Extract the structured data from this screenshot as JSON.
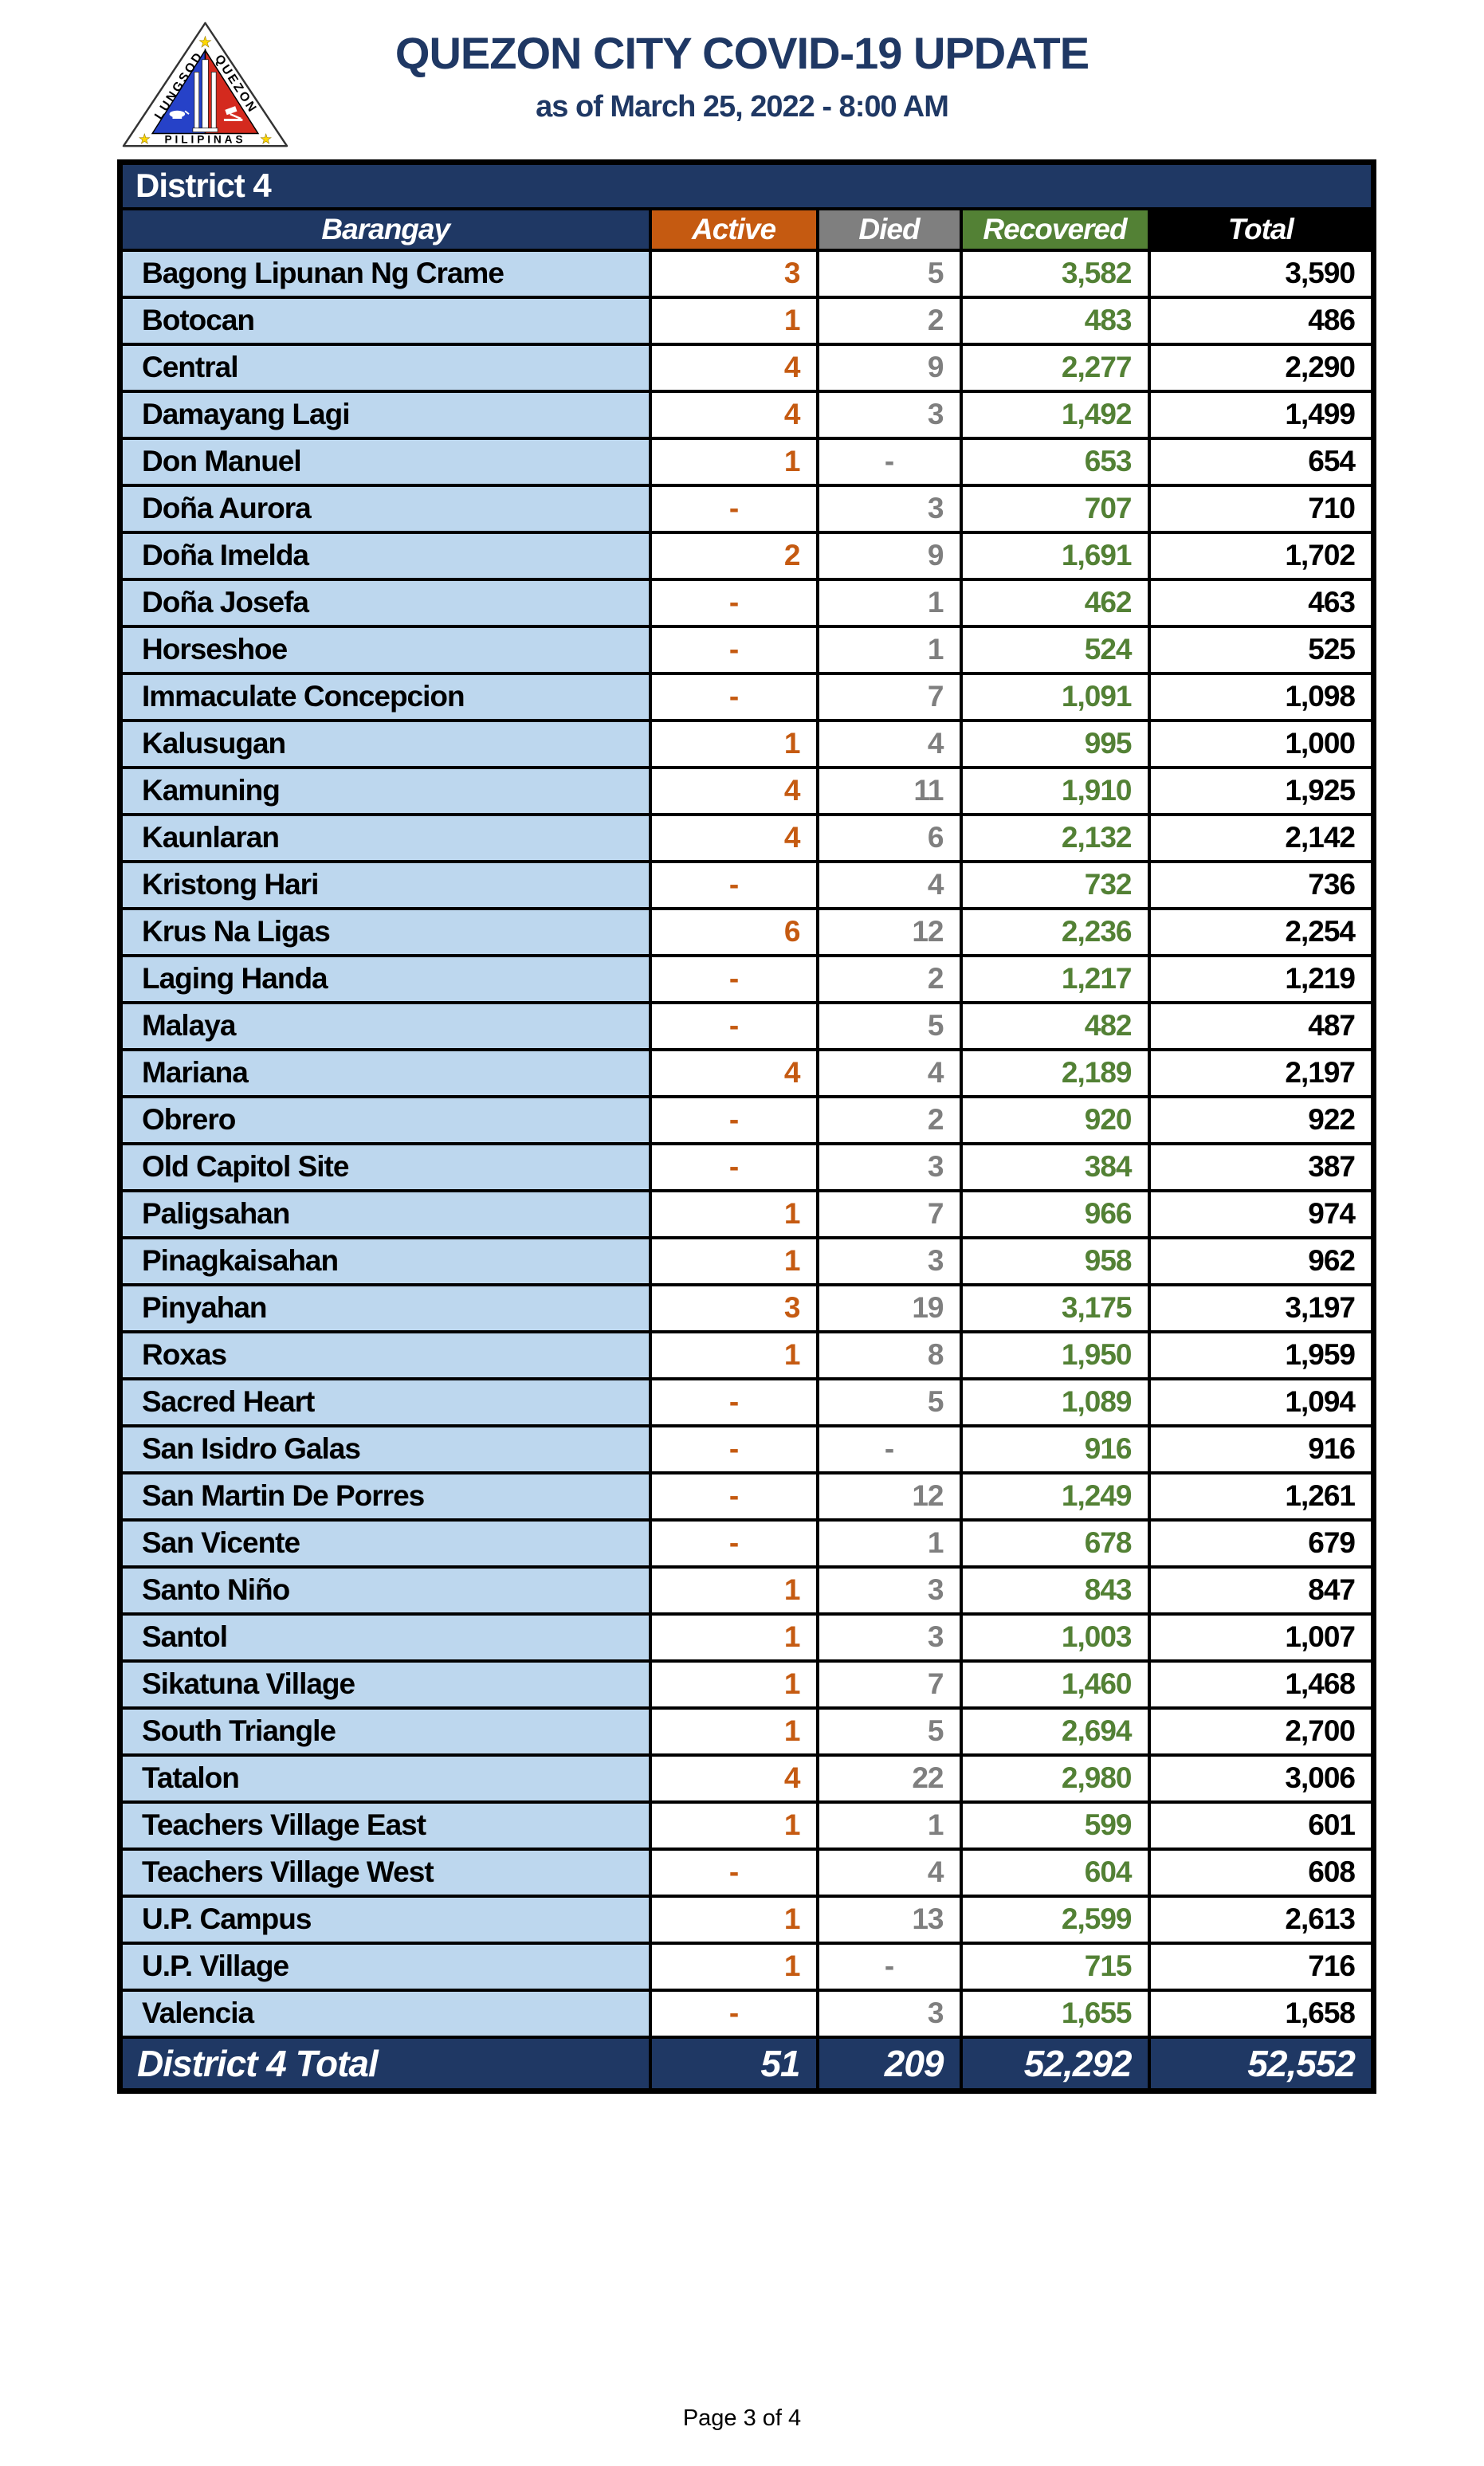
{
  "header": {
    "title": "QUEZON CITY COVID-19 UPDATE",
    "subtitle": "as of March 25, 2022 - 8:00 AM",
    "logo": {
      "text_left": "LUNGSOD",
      "text_right": "QUEZON",
      "text_bottom": "PILIPINAS"
    }
  },
  "table": {
    "district_label": "District 4",
    "columns": [
      "Barangay",
      "Active",
      "Died",
      "Recovered",
      "Total"
    ],
    "rows": [
      {
        "barangay": "Bagong Lipunan Ng Crame",
        "active": "3",
        "died": "5",
        "recovered": "3,582",
        "total": "3,590"
      },
      {
        "barangay": "Botocan",
        "active": "1",
        "died": "2",
        "recovered": "483",
        "total": "486"
      },
      {
        "barangay": "Central",
        "active": "4",
        "died": "9",
        "recovered": "2,277",
        "total": "2,290"
      },
      {
        "barangay": "Damayang Lagi",
        "active": "4",
        "died": "3",
        "recovered": "1,492",
        "total": "1,499"
      },
      {
        "barangay": "Don Manuel",
        "active": "1",
        "died": "-",
        "recovered": "653",
        "total": "654"
      },
      {
        "barangay": "Doña Aurora",
        "active": "-",
        "died": "3",
        "recovered": "707",
        "total": "710"
      },
      {
        "barangay": "Doña Imelda",
        "active": "2",
        "died": "9",
        "recovered": "1,691",
        "total": "1,702"
      },
      {
        "barangay": "Doña Josefa",
        "active": "-",
        "died": "1",
        "recovered": "462",
        "total": "463"
      },
      {
        "barangay": "Horseshoe",
        "active": "-",
        "died": "1",
        "recovered": "524",
        "total": "525"
      },
      {
        "barangay": "Immaculate Concepcion",
        "active": "-",
        "died": "7",
        "recovered": "1,091",
        "total": "1,098"
      },
      {
        "barangay": "Kalusugan",
        "active": "1",
        "died": "4",
        "recovered": "995",
        "total": "1,000"
      },
      {
        "barangay": "Kamuning",
        "active": "4",
        "died": "11",
        "recovered": "1,910",
        "total": "1,925"
      },
      {
        "barangay": "Kaunlaran",
        "active": "4",
        "died": "6",
        "recovered": "2,132",
        "total": "2,142"
      },
      {
        "barangay": "Kristong Hari",
        "active": "-",
        "died": "4",
        "recovered": "732",
        "total": "736"
      },
      {
        "barangay": "Krus Na Ligas",
        "active": "6",
        "died": "12",
        "recovered": "2,236",
        "total": "2,254"
      },
      {
        "barangay": "Laging Handa",
        "active": "-",
        "died": "2",
        "recovered": "1,217",
        "total": "1,219"
      },
      {
        "barangay": "Malaya",
        "active": "-",
        "died": "5",
        "recovered": "482",
        "total": "487"
      },
      {
        "barangay": "Mariana",
        "active": "4",
        "died": "4",
        "recovered": "2,189",
        "total": "2,197"
      },
      {
        "barangay": "Obrero",
        "active": "-",
        "died": "2",
        "recovered": "920",
        "total": "922"
      },
      {
        "barangay": "Old Capitol Site",
        "active": "-",
        "died": "3",
        "recovered": "384",
        "total": "387"
      },
      {
        "barangay": "Paligsahan",
        "active": "1",
        "died": "7",
        "recovered": "966",
        "total": "974"
      },
      {
        "barangay": "Pinagkaisahan",
        "active": "1",
        "died": "3",
        "recovered": "958",
        "total": "962"
      },
      {
        "barangay": "Pinyahan",
        "active": "3",
        "died": "19",
        "recovered": "3,175",
        "total": "3,197"
      },
      {
        "barangay": "Roxas",
        "active": "1",
        "died": "8",
        "recovered": "1,950",
        "total": "1,959"
      },
      {
        "barangay": "Sacred Heart",
        "active": "-",
        "died": "5",
        "recovered": "1,089",
        "total": "1,094"
      },
      {
        "barangay": "San Isidro Galas",
        "active": "-",
        "died": "-",
        "recovered": "916",
        "total": "916"
      },
      {
        "barangay": "San Martin De Porres",
        "active": "-",
        "died": "12",
        "recovered": "1,249",
        "total": "1,261"
      },
      {
        "barangay": "San Vicente",
        "active": "-",
        "died": "1",
        "recovered": "678",
        "total": "679"
      },
      {
        "barangay": "Santo Niño",
        "active": "1",
        "died": "3",
        "recovered": "843",
        "total": "847"
      },
      {
        "barangay": "Santol",
        "active": "1",
        "died": "3",
        "recovered": "1,003",
        "total": "1,007"
      },
      {
        "barangay": "Sikatuna Village",
        "active": "1",
        "died": "7",
        "recovered": "1,460",
        "total": "1,468"
      },
      {
        "barangay": "South Triangle",
        "active": "1",
        "died": "5",
        "recovered": "2,694",
        "total": "2,700"
      },
      {
        "barangay": "Tatalon",
        "active": "4",
        "died": "22",
        "recovered": "2,980",
        "total": "3,006"
      },
      {
        "barangay": "Teachers Village East",
        "active": "1",
        "died": "1",
        "recovered": "599",
        "total": "601"
      },
      {
        "barangay": "Teachers Village West",
        "active": "-",
        "died": "4",
        "recovered": "604",
        "total": "608"
      },
      {
        "barangay": "U.P. Campus",
        "active": "1",
        "died": "13",
        "recovered": "2,599",
        "total": "2,613"
      },
      {
        "barangay": "U.P. Village",
        "active": "1",
        "died": "-",
        "recovered": "715",
        "total": "716"
      },
      {
        "barangay": "Valencia",
        "active": "-",
        "died": "3",
        "recovered": "1,655",
        "total": "1,658"
      }
    ],
    "total_row": {
      "label": "District 4 Total",
      "active": "51",
      "died": "209",
      "recovered": "52,292",
      "total": "52,552"
    }
  },
  "footer": {
    "page_label": "Page 3 of 4"
  },
  "colors": {
    "navy": "#1F3864",
    "light_blue": "#BDD7EE",
    "active_orange": "#C55A11",
    "died_gray": "#7F7F7F",
    "recovered_green": "#538135",
    "total_black": "#000000",
    "logo_blue": "#2642C8",
    "logo_red": "#D42A1E",
    "logo_star_yellow": "#FFD700"
  }
}
